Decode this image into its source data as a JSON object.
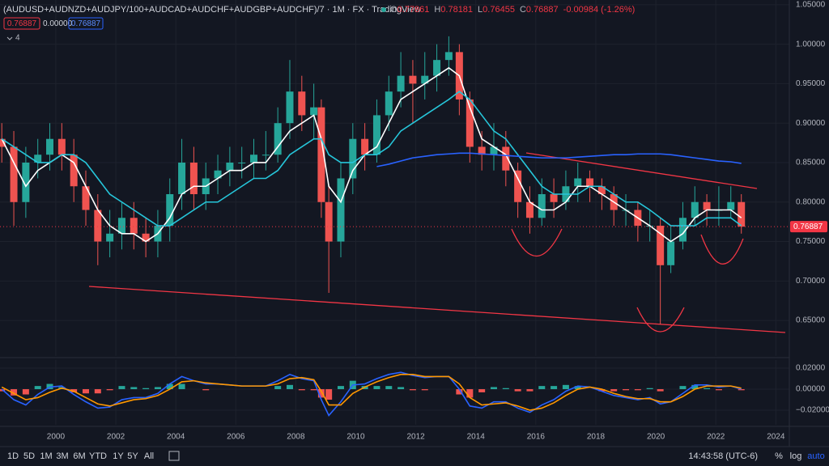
{
  "header": {
    "ohlc": [
      {
        "label": "O",
        "value": "0.77861"
      },
      {
        "label": "H",
        "value": "0.78181"
      },
      {
        "label": "L",
        "value": "0.76455"
      },
      {
        "label": "C",
        "value": "0.76887"
      }
    ],
    "change": "-0.00984 (-1.26%)",
    "value_color": "#f23645",
    "indicator_values": [
      "0.76887",
      "0.00000",
      "0.76887"
    ],
    "hidden_indicators": "4"
  },
  "toolbar": {
    "ranges": [
      "1D",
      "5D",
      "1M",
      "3M",
      "6M",
      "YTD",
      "1Y",
      "5Y",
      "All"
    ],
    "clock": "14:43:58 (UTC-6)",
    "options": [
      "%",
      "log",
      "auto"
    ]
  },
  "chart_data": [
    {
      "type": "candlestick",
      "title": "(AUDUSD+AUDNZD+AUDJPY/100+AUDCAD+AUDCHF+AUDGBP+AUDCHF)/7 · 1M · FX · TradingView",
      "x": [
        1998.2,
        1998.6,
        1999.0,
        1999.4,
        1999.8,
        2000.2,
        2000.6,
        2001.0,
        2001.4,
        2001.8,
        2002.2,
        2002.6,
        2003.0,
        2003.4,
        2003.8,
        2004.2,
        2004.6,
        2005.0,
        2005.4,
        2005.8,
        2006.2,
        2006.6,
        2007.0,
        2007.4,
        2007.8,
        2008.2,
        2008.6,
        2008.85,
        2009.1,
        2009.5,
        2009.9,
        2010.3,
        2010.7,
        2011.1,
        2011.5,
        2011.9,
        2012.3,
        2012.7,
        2013.1,
        2013.45,
        2013.8,
        2014.2,
        2014.6,
        2015.0,
        2015.4,
        2015.8,
        2016.2,
        2016.6,
        2017.0,
        2017.4,
        2017.8,
        2018.2,
        2018.6,
        2019.0,
        2019.4,
        2019.8,
        2020.15,
        2020.5,
        2020.9,
        2021.3,
        2021.7,
        2022.1,
        2022.5,
        2022.85
      ],
      "open": [
        0.88,
        0.87,
        0.8,
        0.85,
        0.86,
        0.88,
        0.86,
        0.82,
        0.79,
        0.75,
        0.76,
        0.78,
        0.76,
        0.75,
        0.77,
        0.81,
        0.85,
        0.81,
        0.83,
        0.84,
        0.85,
        0.85,
        0.86,
        0.86,
        0.9,
        0.94,
        0.91,
        0.92,
        0.8,
        0.75,
        0.83,
        0.88,
        0.86,
        0.91,
        0.94,
        0.96,
        0.95,
        0.96,
        0.98,
        0.99,
        0.93,
        0.87,
        0.86,
        0.87,
        0.84,
        0.8,
        0.78,
        0.81,
        0.8,
        0.82,
        0.83,
        0.82,
        0.81,
        0.79,
        0.79,
        0.77,
        0.77,
        0.72,
        0.75,
        0.78,
        0.8,
        0.79,
        0.79,
        0.8
      ],
      "high": [
        0.9,
        0.89,
        0.87,
        0.88,
        0.9,
        0.9,
        0.88,
        0.84,
        0.81,
        0.79,
        0.8,
        0.8,
        0.78,
        0.79,
        0.83,
        0.88,
        0.87,
        0.85,
        0.86,
        0.87,
        0.87,
        0.88,
        0.89,
        0.92,
        0.98,
        0.96,
        0.95,
        0.93,
        0.82,
        0.85,
        0.9,
        0.9,
        0.93,
        0.96,
        0.99,
        0.98,
        0.99,
        1.0,
        1.01,
        1.0,
        0.94,
        0.89,
        0.9,
        0.89,
        0.85,
        0.82,
        0.83,
        0.83,
        0.84,
        0.85,
        0.84,
        0.83,
        0.82,
        0.81,
        0.8,
        0.79,
        0.78,
        0.77,
        0.8,
        0.82,
        0.81,
        0.82,
        0.82,
        0.81
      ],
      "low": [
        0.85,
        0.77,
        0.78,
        0.83,
        0.84,
        0.84,
        0.8,
        0.77,
        0.72,
        0.73,
        0.74,
        0.74,
        0.73,
        0.73,
        0.75,
        0.79,
        0.79,
        0.79,
        0.81,
        0.82,
        0.83,
        0.83,
        0.84,
        0.85,
        0.88,
        0.89,
        0.88,
        0.78,
        0.685,
        0.73,
        0.81,
        0.84,
        0.85,
        0.89,
        0.92,
        0.9,
        0.93,
        0.94,
        0.96,
        0.91,
        0.85,
        0.84,
        0.84,
        0.82,
        0.78,
        0.76,
        0.77,
        0.78,
        0.79,
        0.8,
        0.8,
        0.79,
        0.77,
        0.77,
        0.75,
        0.75,
        0.645,
        0.71,
        0.74,
        0.77,
        0.77,
        0.77,
        0.78,
        0.76
      ],
      "close": [
        0.87,
        0.8,
        0.85,
        0.86,
        0.88,
        0.86,
        0.82,
        0.79,
        0.75,
        0.76,
        0.78,
        0.76,
        0.75,
        0.77,
        0.81,
        0.85,
        0.81,
        0.83,
        0.84,
        0.85,
        0.85,
        0.86,
        0.86,
        0.9,
        0.94,
        0.91,
        0.92,
        0.8,
        0.75,
        0.83,
        0.88,
        0.86,
        0.91,
        0.94,
        0.96,
        0.95,
        0.96,
        0.98,
        0.99,
        0.93,
        0.87,
        0.86,
        0.87,
        0.84,
        0.8,
        0.78,
        0.81,
        0.8,
        0.82,
        0.83,
        0.82,
        0.81,
        0.79,
        0.79,
        0.77,
        0.77,
        0.72,
        0.75,
        0.78,
        0.8,
        0.79,
        0.79,
        0.8,
        0.76887
      ],
      "up_color": "#26a69a",
      "down_color": "#ef5350",
      "series": [
        {
          "color": "#ffffff",
          "values": [
            0.88,
            0.85,
            0.82,
            0.84,
            0.85,
            0.86,
            0.85,
            0.82,
            0.79,
            0.77,
            0.76,
            0.76,
            0.75,
            0.76,
            0.78,
            0.81,
            0.82,
            0.82,
            0.83,
            0.84,
            0.84,
            0.85,
            0.85,
            0.87,
            0.89,
            0.9,
            0.91,
            0.88,
            0.82,
            0.8,
            0.84,
            0.86,
            0.87,
            0.9,
            0.93,
            0.94,
            0.95,
            0.96,
            0.97,
            0.96,
            0.92,
            0.88,
            0.87,
            0.86,
            0.83,
            0.8,
            0.79,
            0.79,
            0.8,
            0.82,
            0.82,
            0.81,
            0.8,
            0.79,
            0.78,
            0.77,
            0.76,
            0.75,
            0.76,
            0.78,
            0.79,
            0.79,
            0.79,
            0.78
          ]
        },
        {
          "color": "#26c6da",
          "values": [
            0.88,
            0.87,
            0.86,
            0.85,
            0.85,
            0.86,
            0.86,
            0.85,
            0.83,
            0.81,
            0.8,
            0.79,
            0.78,
            0.77,
            0.77,
            0.78,
            0.79,
            0.8,
            0.8,
            0.81,
            0.82,
            0.83,
            0.83,
            0.84,
            0.86,
            0.87,
            0.88,
            0.88,
            0.86,
            0.85,
            0.85,
            0.86,
            0.86,
            0.87,
            0.89,
            0.9,
            0.91,
            0.92,
            0.93,
            0.94,
            0.93,
            0.91,
            0.89,
            0.88,
            0.86,
            0.84,
            0.82,
            0.81,
            0.81,
            0.81,
            0.82,
            0.82,
            0.81,
            0.8,
            0.8,
            0.79,
            0.78,
            0.77,
            0.77,
            0.77,
            0.78,
            0.78,
            0.78,
            0.77
          ]
        },
        {
          "color": "#2962ff",
          "values": [
            null,
            null,
            null,
            null,
            null,
            null,
            null,
            null,
            null,
            null,
            null,
            null,
            null,
            null,
            null,
            null,
            null,
            null,
            null,
            null,
            null,
            null,
            null,
            null,
            null,
            null,
            null,
            null,
            null,
            null,
            null,
            null,
            0.845,
            0.848,
            0.852,
            0.856,
            0.858,
            0.86,
            0.861,
            0.862,
            0.862,
            0.861,
            0.86,
            0.859,
            0.858,
            0.857,
            0.856,
            0.856,
            0.856,
            0.857,
            0.858,
            0.859,
            0.86,
            0.86,
            0.861,
            0.861,
            0.861,
            0.86,
            0.858,
            0.856,
            0.854,
            0.852,
            0.851,
            0.849
          ]
        }
      ],
      "xlim": [
        1998.14,
        2024.45
      ],
      "xticks": [
        2000,
        2002,
        2004,
        2006,
        2008,
        2010,
        2012,
        2014,
        2016,
        2018,
        2020,
        2022,
        2024
      ],
      "ylim": [
        0.605,
        1.056
      ],
      "yticks": [
        {
          "value": 1.05,
          "label": "1.05000"
        },
        {
          "value": 1.0,
          "label": "1.00000"
        },
        {
          "value": 0.95,
          "label": "0.95000"
        },
        {
          "value": 0.9,
          "label": "0.90000"
        },
        {
          "value": 0.85,
          "label": "0.85000"
        },
        {
          "value": 0.8,
          "label": "0.80000"
        },
        {
          "value": 0.75,
          "label": "0.75000"
        },
        {
          "value": 0.7,
          "label": "0.70000"
        },
        {
          "value": 0.65,
          "label": "0.65000"
        }
      ],
      "grid": true,
      "last_price": {
        "value": 0.76887,
        "label": "0.76887",
        "color": "#f23645"
      }
    },
    {
      "type": "macd",
      "histogram": {
        "up_color": "#26a69a",
        "down_color": "#ef5350",
        "values": [
          -0.002,
          -0.006,
          -0.005,
          0.003,
          0.005,
          0.002,
          -0.003,
          -0.004,
          -0.004,
          -0.001,
          0.003,
          0.002,
          0.001,
          0.002,
          0.005,
          0.005,
          0.0,
          -0.001,
          0.0,
          0.0,
          0.0,
          0.0,
          0.0,
          0.003,
          0.004,
          -0.001,
          -0.001,
          -0.008,
          -0.01,
          0.003,
          0.008,
          0.003,
          0.003,
          0.003,
          0.002,
          -0.001,
          -0.001,
          0.0,
          0.0,
          -0.005,
          -0.008,
          -0.003,
          0.002,
          0.001,
          -0.002,
          -0.002,
          0.003,
          0.003,
          0.004,
          0.003,
          0.0,
          -0.002,
          -0.002,
          -0.001,
          -0.001,
          0.001,
          -0.002,
          0.0,
          0.003,
          0.004,
          0.001,
          -0.001,
          0.0,
          -0.001
        ]
      },
      "series": [
        {
          "color": "#2962ff",
          "values": [
            0.0,
            -0.01,
            -0.015,
            -0.005,
            0.002,
            0.003,
            -0.005,
            -0.012,
            -0.018,
            -0.017,
            -0.01,
            -0.008,
            -0.008,
            -0.004,
            0.005,
            0.012,
            0.008,
            0.005,
            0.005,
            0.004,
            0.003,
            0.003,
            0.003,
            0.008,
            0.014,
            0.01,
            0.008,
            -0.01,
            -0.025,
            -0.012,
            0.004,
            0.005,
            0.01,
            0.014,
            0.016,
            0.013,
            0.011,
            0.012,
            0.012,
            0.0,
            -0.016,
            -0.018,
            -0.012,
            -0.012,
            -0.018,
            -0.022,
            -0.015,
            -0.01,
            -0.002,
            0.003,
            0.002,
            -0.002,
            -0.006,
            -0.008,
            -0.01,
            -0.008,
            -0.014,
            -0.012,
            -0.004,
            0.004,
            0.004,
            0.002,
            0.003,
            0.0
          ]
        },
        {
          "color": "#ff9800",
          "values": [
            0.002,
            -0.004,
            -0.01,
            -0.008,
            -0.003,
            0.001,
            -0.002,
            -0.008,
            -0.014,
            -0.016,
            -0.013,
            -0.01,
            -0.009,
            -0.006,
            0.0,
            0.007,
            0.008,
            0.006,
            0.005,
            0.004,
            0.003,
            0.003,
            0.003,
            0.005,
            0.01,
            0.011,
            0.009,
            -0.002,
            -0.015,
            -0.015,
            -0.004,
            0.002,
            0.007,
            0.011,
            0.014,
            0.014,
            0.012,
            0.012,
            0.012,
            0.005,
            -0.008,
            -0.015,
            -0.014,
            -0.013,
            -0.016,
            -0.02,
            -0.018,
            -0.013,
            -0.006,
            0.0,
            0.002,
            0.0,
            -0.004,
            -0.007,
            -0.009,
            -0.009,
            -0.012,
            -0.012,
            -0.007,
            0.0,
            0.003,
            0.003,
            0.003,
            0.001
          ]
        }
      ],
      "ylim": [
        -0.0338,
        0.0277
      ],
      "yticks": [
        {
          "value": 0.02,
          "label": "0.02000"
        },
        {
          "value": 0,
          "label": "0.00000"
        },
        {
          "value": -0.02,
          "label": "−0.02000"
        }
      ],
      "grid": true
    }
  ]
}
